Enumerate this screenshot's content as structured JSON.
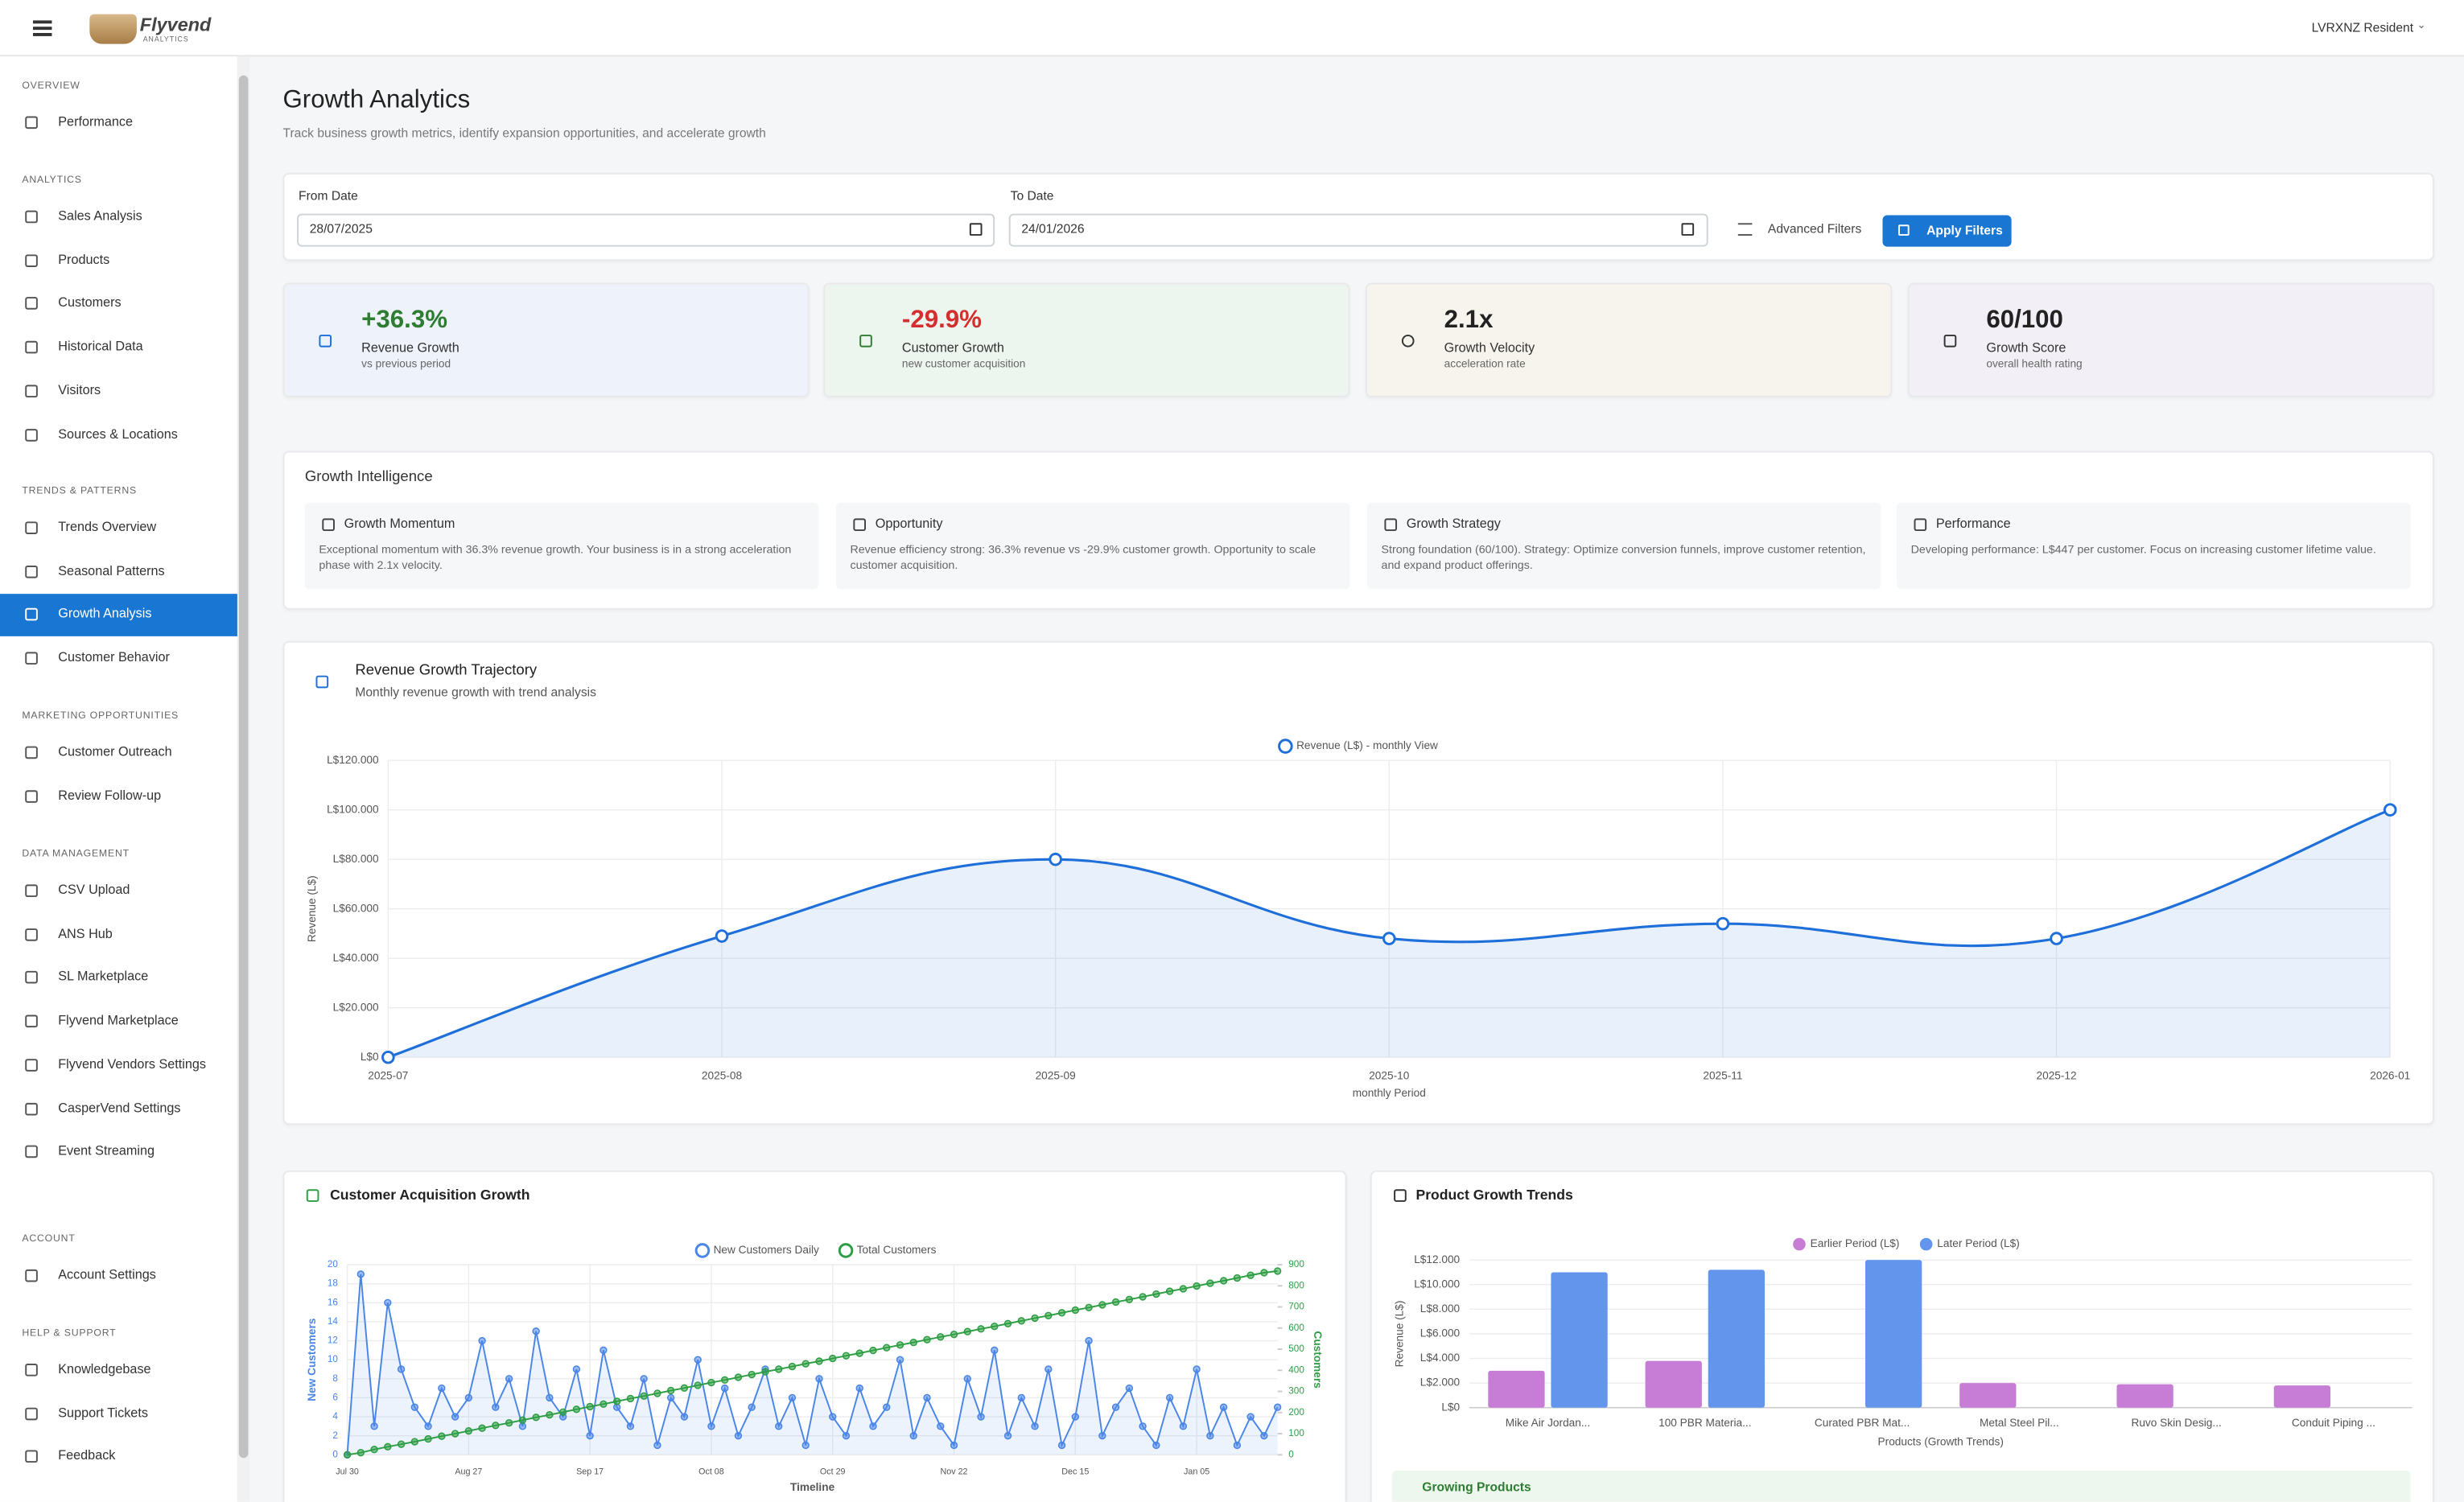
{
  "header": {
    "brand": "Flyvend",
    "brand_sub": "ANALYTICS",
    "user": "LVRXNZ Resident"
  },
  "sidebar": {
    "sections": [
      {
        "title": "OVERVIEW",
        "items": [
          {
            "label": "Performance"
          }
        ]
      },
      {
        "title": "ANALYTICS",
        "items": [
          {
            "label": "Sales Analysis"
          },
          {
            "label": "Products"
          },
          {
            "label": "Customers"
          },
          {
            "label": "Historical Data"
          },
          {
            "label": "Visitors"
          },
          {
            "label": "Sources & Locations"
          }
        ]
      },
      {
        "title": "TRENDS & PATTERNS",
        "items": [
          {
            "label": "Trends Overview"
          },
          {
            "label": "Seasonal Patterns"
          },
          {
            "label": "Growth Analysis",
            "active": true
          },
          {
            "label": "Customer Behavior"
          }
        ]
      },
      {
        "title": "MARKETING OPPORTUNITIES",
        "items": [
          {
            "label": "Customer Outreach"
          },
          {
            "label": "Review Follow-up"
          }
        ]
      },
      {
        "title": "DATA MANAGEMENT",
        "items": [
          {
            "label": "CSV Upload"
          },
          {
            "label": "ANS Hub"
          },
          {
            "label": "SL Marketplace"
          },
          {
            "label": "Flyvend Marketplace"
          },
          {
            "label": "Flyvend Vendors Settings"
          },
          {
            "label": "CasperVend Settings"
          },
          {
            "label": "Event Streaming"
          }
        ]
      },
      {
        "title": "ACCOUNT",
        "items": [
          {
            "label": "Account Settings"
          }
        ]
      },
      {
        "title": "HELP & SUPPORT",
        "items": [
          {
            "label": "Knowledgebase"
          },
          {
            "label": "Support Tickets"
          },
          {
            "label": "Feedback"
          }
        ]
      }
    ]
  },
  "page": {
    "title": "Growth Analytics",
    "subtitle": "Track business growth metrics, identify expansion opportunities, and accelerate growth"
  },
  "filters": {
    "from_label": "From Date",
    "from_value": "28/07/2025",
    "to_label": "To Date",
    "to_value": "24/01/2026",
    "advanced": "Advanced Filters",
    "apply": "Apply Filters"
  },
  "kpis": [
    {
      "value": "+36.3%",
      "label": "Revenue Growth",
      "sub": "vs previous period",
      "color": "#2e7d32"
    },
    {
      "value": "-29.9%",
      "label": "Customer Growth",
      "sub": "new customer acquisition",
      "color": "#d32f2f"
    },
    {
      "value": "2.1x",
      "label": "Growth Velocity",
      "sub": "acceleration rate",
      "color": "#222222"
    },
    {
      "value": "60/100",
      "label": "Growth Score",
      "sub": "overall health rating",
      "color": "#222222"
    }
  ],
  "intelligence": {
    "title": "Growth Intelligence",
    "cards": [
      {
        "title": "Growth Momentum",
        "text": "Exceptional momentum with 36.3% revenue growth. Your business is in a strong acceleration phase with 2.1x velocity."
      },
      {
        "title": "Opportunity",
        "text": "Revenue efficiency strong: 36.3% revenue vs -29.9% customer growth. Opportunity to scale customer acquisition."
      },
      {
        "title": "Growth Strategy",
        "text": "Strong foundation (60/100). Strategy: Optimize conversion funnels, improve customer retention, and expand product offerings."
      },
      {
        "title": "Performance",
        "text": "Developing performance: L$447 per customer. Focus on increasing customer lifetime value."
      }
    ]
  },
  "products_section": {
    "growing_title": "Growing Products"
  },
  "chart_data": [
    {
      "type": "line",
      "title": "Revenue Growth Trajectory",
      "subtitle": "Monthly revenue growth with trend analysis",
      "categories": [
        "2025-07",
        "2025-08",
        "2025-09",
        "2025-10",
        "2025-11",
        "2025-12",
        "2026-01"
      ],
      "series": [
        {
          "name": "Revenue (L$) - monthly View",
          "color": "#1e6fd9",
          "fill": true,
          "values": [
            0,
            49000,
            80000,
            48000,
            54000,
            48000,
            100000
          ]
        }
      ],
      "ylim": [
        0,
        120000
      ],
      "yticks": [
        {
          "value": 0,
          "label": "L$0"
        },
        {
          "value": 20000,
          "label": "L$20.000"
        },
        {
          "value": 40000,
          "label": "L$40.000"
        },
        {
          "value": 60000,
          "label": "L$60.000"
        },
        {
          "value": 80000,
          "label": "L$80.000"
        },
        {
          "value": 100000,
          "label": "L$100.000"
        },
        {
          "value": 120000,
          "label": "L$120.000"
        }
      ],
      "xlabel": "monthly Period",
      "ylabel": "Revenue (L$)",
      "grid": true,
      "smooth": true
    },
    {
      "type": "line",
      "title": "Customer Acquisition Growth",
      "categories": [
        "Jul 30",
        null,
        null,
        null,
        null,
        null,
        null,
        null,
        null,
        "Aug 27",
        null,
        null,
        null,
        null,
        null,
        null,
        null,
        null,
        "Sep 17",
        null,
        null,
        null,
        null,
        null,
        null,
        null,
        null,
        "Oct 08",
        null,
        null,
        null,
        null,
        null,
        null,
        null,
        null,
        "Oct 29",
        null,
        null,
        null,
        null,
        null,
        null,
        null,
        null,
        "Nov 22",
        null,
        null,
        null,
        null,
        null,
        null,
        null,
        null,
        "Dec 15",
        null,
        null,
        null,
        null,
        null,
        null,
        null,
        null,
        "Jan 05",
        null,
        null,
        null,
        null,
        null,
        null
      ],
      "series": [
        {
          "name": "New Customers Daily",
          "color": "#4a86e8",
          "fill": true,
          "values": [
            0,
            19,
            3,
            16,
            9,
            5,
            3,
            7,
            4,
            6,
            12,
            5,
            8,
            3,
            13,
            6,
            4,
            9,
            2,
            11,
            5,
            3,
            8,
            1,
            6,
            4,
            10,
            3,
            7,
            2,
            5,
            9,
            3,
            6,
            1,
            8,
            4,
            2,
            7,
            3,
            5,
            10,
            2,
            6,
            3,
            1,
            8,
            4,
            11,
            2,
            6,
            3,
            9,
            1,
            4,
            12,
            2,
            5,
            7,
            3,
            1,
            6,
            3,
            9,
            2,
            5,
            1,
            4,
            2,
            5
          ]
        },
        {
          "name": "Total Customers",
          "color": "#2e9e44",
          "axis": "y2",
          "values": [
            0,
            10,
            25,
            38,
            50,
            62,
            75,
            88,
            100,
            113,
            126,
            139,
            151,
            164,
            177,
            189,
            202,
            215,
            228,
            240,
            253,
            266,
            278,
            291,
            304,
            316,
            329,
            342,
            354,
            367,
            380,
            393,
            405,
            418,
            431,
            443,
            456,
            469,
            481,
            494,
            507,
            520,
            532,
            545,
            558,
            570,
            583,
            596,
            608,
            621,
            634,
            647,
            659,
            672,
            685,
            697,
            710,
            723,
            735,
            748,
            761,
            774,
            786,
            799,
            812,
            824,
            837,
            850,
            862,
            870
          ]
        }
      ],
      "ylim": [
        0,
        20
      ],
      "yticks": [
        0,
        2,
        4,
        6,
        8,
        10,
        12,
        14,
        16,
        18,
        20
      ],
      "y2lim": [
        0,
        900
      ],
      "y2ticks": [
        0,
        100,
        200,
        300,
        400,
        500,
        600,
        700,
        800,
        900
      ],
      "xlabel": "Timeline",
      "ylabel": "New Customers",
      "y2label": "Customers",
      "grid": true,
      "smooth": false
    },
    {
      "type": "bar",
      "title": "Product Growth Trends",
      "categories": [
        "Mike Air Jordan...",
        "100 PBR Materia...",
        "Curated PBR Mat...",
        "Metal Steel Pil...",
        "Ruvo Skin Desig...",
        "Conduit Piping ..."
      ],
      "series": [
        {
          "name": "Earlier Period (L$)",
          "color": "#c77dd6",
          "values": [
            3000,
            3800,
            0,
            2000,
            1900,
            1800
          ]
        },
        {
          "name": "Later Period (L$)",
          "color": "#6495ed",
          "values": [
            11000,
            11200,
            12000,
            0,
            0,
            0
          ]
        }
      ],
      "ylim": [
        0,
        12000
      ],
      "yticks": [
        {
          "value": 0,
          "label": "L$0"
        },
        {
          "value": 2000,
          "label": "L$2.000"
        },
        {
          "value": 4000,
          "label": "L$4.000"
        },
        {
          "value": 6000,
          "label": "L$6.000"
        },
        {
          "value": 8000,
          "label": "L$8.000"
        },
        {
          "value": 10000,
          "label": "L$10.000"
        },
        {
          "value": 12000,
          "label": "L$12.000"
        }
      ],
      "xlabel": "Products (Growth Trends)",
      "ylabel": "Revenue (L$)",
      "grid": true
    }
  ]
}
